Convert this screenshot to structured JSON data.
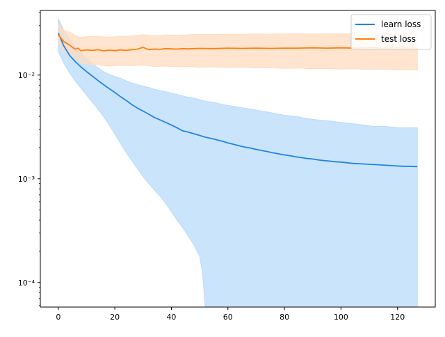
{
  "chart_data": {
    "type": "line",
    "title": "",
    "xlabel": "",
    "ylabel": "",
    "x_range": [
      0,
      127
    ],
    "xlim": [
      -6.35,
      133.35
    ],
    "ylim": [
      5.8e-05,
      0.042
    ],
    "yscale": "log",
    "grid": false,
    "legend_position": "top-right",
    "x_ticks": [
      0,
      20,
      40,
      60,
      80,
      100,
      120
    ],
    "x_tick_labels": [
      "0",
      "20",
      "40",
      "60",
      "80",
      "100",
      "120"
    ],
    "y_ticks": [
      0.0001,
      0.001,
      0.01
    ],
    "y_tick_labels": [
      "10⁻⁴",
      "10⁻³",
      "10⁻²"
    ],
    "series": [
      {
        "name": "learn loss",
        "color": "#1f83e6",
        "band_color": "#b8dbfb",
        "mean_points": [
          [
            0,
            0.0255
          ],
          [
            2,
            0.019
          ],
          [
            4,
            0.0155
          ],
          [
            6,
            0.0135
          ],
          [
            8,
            0.012
          ],
          [
            10,
            0.0108
          ],
          [
            12,
            0.0098
          ],
          [
            14,
            0.0089
          ],
          [
            16,
            0.0081
          ],
          [
            18,
            0.0074
          ],
          [
            20,
            0.0068
          ],
          [
            22,
            0.0062
          ],
          [
            24,
            0.0057
          ],
          [
            26,
            0.0052
          ],
          [
            28,
            0.0048
          ],
          [
            30,
            0.0045
          ],
          [
            32,
            0.0042
          ],
          [
            34,
            0.0039
          ],
          [
            36,
            0.0037
          ],
          [
            38,
            0.0035
          ],
          [
            40,
            0.0033
          ],
          [
            42,
            0.0031
          ],
          [
            44,
            0.0029
          ],
          [
            46,
            0.00282
          ],
          [
            48,
            0.00272
          ],
          [
            50,
            0.00262
          ],
          [
            52,
            0.00252
          ],
          [
            54,
            0.00245
          ],
          [
            56,
            0.00238
          ],
          [
            58,
            0.0023
          ],
          [
            60,
            0.00222
          ],
          [
            62,
            0.00215
          ],
          [
            64,
            0.00208
          ],
          [
            66,
            0.00202
          ],
          [
            68,
            0.00198
          ],
          [
            70,
            0.00192
          ],
          [
            72,
            0.00187
          ],
          [
            74,
            0.00183
          ],
          [
            76,
            0.00178
          ],
          [
            78,
            0.00174
          ],
          [
            80,
            0.0017
          ],
          [
            82,
            0.00167
          ],
          [
            84,
            0.00163
          ],
          [
            86,
            0.0016
          ],
          [
            88,
            0.00157
          ],
          [
            90,
            0.00155
          ],
          [
            92,
            0.00152
          ],
          [
            94,
            0.0015
          ],
          [
            96,
            0.00148
          ],
          [
            98,
            0.00146
          ],
          [
            100,
            0.00145
          ],
          [
            102,
            0.00143
          ],
          [
            104,
            0.00141
          ],
          [
            106,
            0.0014
          ],
          [
            108,
            0.00139
          ],
          [
            110,
            0.00138
          ],
          [
            112,
            0.00137
          ],
          [
            114,
            0.00136
          ],
          [
            116,
            0.00135
          ],
          [
            118,
            0.00134
          ],
          [
            120,
            0.00133
          ],
          [
            122,
            0.00132
          ],
          [
            124,
            0.00132
          ],
          [
            127,
            0.00131
          ]
        ],
        "band_upper": [
          [
            0,
            0.035
          ],
          [
            2,
            0.027
          ],
          [
            4,
            0.022
          ],
          [
            6,
            0.0185
          ],
          [
            8,
            0.0165
          ],
          [
            10,
            0.0145
          ],
          [
            12,
            0.0128
          ],
          [
            14,
            0.0118
          ],
          [
            16,
            0.0108
          ],
          [
            18,
            0.0102
          ],
          [
            20,
            0.0097
          ],
          [
            22,
            0.0093
          ],
          [
            24,
            0.0088
          ],
          [
            26,
            0.0084
          ],
          [
            28,
            0.0081
          ],
          [
            30,
            0.0078
          ],
          [
            32,
            0.0076
          ],
          [
            34,
            0.0073
          ],
          [
            36,
            0.0071
          ],
          [
            38,
            0.0069
          ],
          [
            40,
            0.0067
          ],
          [
            42,
            0.0065
          ],
          [
            44,
            0.0063
          ],
          [
            46,
            0.0061
          ],
          [
            48,
            0.006
          ],
          [
            50,
            0.0058
          ],
          [
            52,
            0.0056
          ],
          [
            54,
            0.0055
          ],
          [
            56,
            0.0054
          ],
          [
            58,
            0.0052
          ],
          [
            60,
            0.0051
          ],
          [
            64,
            0.0049
          ],
          [
            68,
            0.0047
          ],
          [
            72,
            0.0045
          ],
          [
            76,
            0.0043
          ],
          [
            80,
            0.0041
          ],
          [
            84,
            0.004
          ],
          [
            88,
            0.0038
          ],
          [
            92,
            0.0037
          ],
          [
            96,
            0.0036
          ],
          [
            100,
            0.0035
          ],
          [
            104,
            0.0034
          ],
          [
            108,
            0.0033
          ],
          [
            112,
            0.0032
          ],
          [
            116,
            0.0032
          ],
          [
            120,
            0.0031
          ],
          [
            124,
            0.0031
          ],
          [
            127,
            0.0031
          ]
        ],
        "band_lower": [
          [
            0,
            0.017
          ],
          [
            2,
            0.013
          ],
          [
            4,
            0.0105
          ],
          [
            6,
            0.0088
          ],
          [
            8,
            0.0075
          ],
          [
            10,
            0.0064
          ],
          [
            12,
            0.0055
          ],
          [
            14,
            0.0047
          ],
          [
            16,
            0.004
          ],
          [
            18,
            0.0033
          ],
          [
            20,
            0.0027
          ],
          [
            22,
            0.0022
          ],
          [
            24,
            0.0018
          ],
          [
            26,
            0.0015
          ],
          [
            28,
            0.00125
          ],
          [
            30,
            0.00105
          ],
          [
            32,
            0.0009
          ],
          [
            34,
            0.00078
          ],
          [
            36,
            0.00068
          ],
          [
            38,
            0.00058
          ],
          [
            40,
            0.00048
          ],
          [
            42,
            0.0004
          ],
          [
            44,
            0.00034
          ],
          [
            46,
            0.00028
          ],
          [
            48,
            0.00023
          ],
          [
            50,
            0.00018
          ],
          [
            51,
            0.000125
          ],
          [
            52,
            5.8e-05
          ],
          [
            127,
            5.8e-05
          ]
        ]
      },
      {
        "name": "test loss",
        "color": "#ff7f0e",
        "band_color": "#ffdcbf",
        "mean_points": [
          [
            0,
            0.0245
          ],
          [
            2,
            0.021
          ],
          [
            4,
            0.0195
          ],
          [
            5,
            0.0185
          ],
          [
            6,
            0.0178
          ],
          [
            7,
            0.0182
          ],
          [
            8,
            0.0172
          ],
          [
            10,
            0.0175
          ],
          [
            12,
            0.0173
          ],
          [
            14,
            0.0176
          ],
          [
            16,
            0.0171
          ],
          [
            18,
            0.0174
          ],
          [
            20,
            0.0172
          ],
          [
            22,
            0.0175
          ],
          [
            24,
            0.0173
          ],
          [
            26,
            0.0176
          ],
          [
            28,
            0.0178
          ],
          [
            30,
            0.0185
          ],
          [
            32,
            0.0176
          ],
          [
            34,
            0.0178
          ],
          [
            36,
            0.0177
          ],
          [
            38,
            0.018
          ],
          [
            40,
            0.0179
          ],
          [
            42,
            0.0178
          ],
          [
            44,
            0.018
          ],
          [
            46,
            0.0179
          ],
          [
            50,
            0.0181
          ],
          [
            55,
            0.018
          ],
          [
            60,
            0.0182
          ],
          [
            65,
            0.0181
          ],
          [
            70,
            0.0182
          ],
          [
            75,
            0.0181
          ],
          [
            80,
            0.0182
          ],
          [
            85,
            0.0182
          ],
          [
            90,
            0.0183
          ],
          [
            95,
            0.0182
          ],
          [
            100,
            0.0183
          ],
          [
            105,
            0.0182
          ],
          [
            110,
            0.0183
          ],
          [
            115,
            0.0182
          ],
          [
            120,
            0.0183
          ],
          [
            127,
            0.0182
          ]
        ],
        "band_upper": [
          [
            0,
            0.031
          ],
          [
            2,
            0.027
          ],
          [
            4,
            0.026
          ],
          [
            6,
            0.024
          ],
          [
            8,
            0.023
          ],
          [
            10,
            0.0235
          ],
          [
            14,
            0.0235
          ],
          [
            18,
            0.0232
          ],
          [
            22,
            0.0236
          ],
          [
            26,
            0.0238
          ],
          [
            30,
            0.0245
          ],
          [
            34,
            0.024
          ],
          [
            38,
            0.0244
          ],
          [
            42,
            0.0242
          ],
          [
            46,
            0.0245
          ],
          [
            50,
            0.0247
          ],
          [
            55,
            0.0246
          ],
          [
            60,
            0.0248
          ],
          [
            65,
            0.0247
          ],
          [
            70,
            0.0249
          ],
          [
            75,
            0.0248
          ],
          [
            80,
            0.0249
          ],
          [
            85,
            0.025
          ],
          [
            90,
            0.0249
          ],
          [
            95,
            0.025
          ],
          [
            100,
            0.0251
          ],
          [
            105,
            0.0249
          ],
          [
            110,
            0.025
          ],
          [
            115,
            0.0251
          ],
          [
            120,
            0.025
          ],
          [
            127,
            0.0251
          ]
        ],
        "band_lower": [
          [
            0,
            0.02
          ],
          [
            2,
            0.017
          ],
          [
            4,
            0.0155
          ],
          [
            6,
            0.0145
          ],
          [
            8,
            0.013
          ],
          [
            10,
            0.0128
          ],
          [
            14,
            0.0125
          ],
          [
            18,
            0.0122
          ],
          [
            22,
            0.0124
          ],
          [
            26,
            0.0123
          ],
          [
            30,
            0.0125
          ],
          [
            34,
            0.0121
          ],
          [
            38,
            0.0122
          ],
          [
            42,
            0.012
          ],
          [
            46,
            0.0121
          ],
          [
            50,
            0.0119
          ],
          [
            55,
            0.012
          ],
          [
            60,
            0.0118
          ],
          [
            65,
            0.0119
          ],
          [
            70,
            0.0117
          ],
          [
            75,
            0.0118
          ],
          [
            80,
            0.0116
          ],
          [
            85,
            0.0117
          ],
          [
            90,
            0.0115
          ],
          [
            95,
            0.0116
          ],
          [
            100,
            0.0114
          ],
          [
            105,
            0.0115
          ],
          [
            110,
            0.0113
          ],
          [
            115,
            0.0114
          ],
          [
            120,
            0.0112
          ],
          [
            127,
            0.0112
          ]
        ]
      }
    ]
  }
}
